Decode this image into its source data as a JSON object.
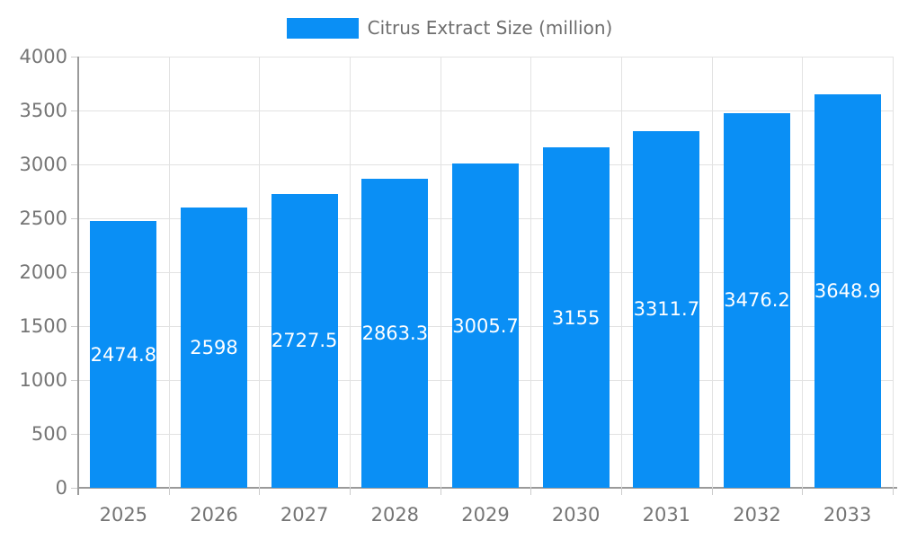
{
  "colors": {
    "bar": "#0A8FF5",
    "grid_line": "#e2e2e2",
    "axis_line": "#9a9a9a",
    "tick": "#cccccc",
    "axis_text": "#757575",
    "legend_text": "#6e6e6e",
    "bar_label_text": "#ffffff",
    "background": "#ffffff"
  },
  "chart_data": {
    "type": "bar",
    "title": "",
    "legend": "Citrus Extract Size (million)",
    "legend_position": "top-center",
    "categories": [
      "2025",
      "2026",
      "2027",
      "2028",
      "2029",
      "2030",
      "2031",
      "2032",
      "2033"
    ],
    "values": [
      2474.8,
      2598,
      2727.5,
      2863.3,
      3005.7,
      3155,
      3311.7,
      3476.2,
      3648.9
    ],
    "value_labels": [
      "2474.8",
      "2598",
      "2727.5",
      "2863.3",
      "3005.7",
      "3155",
      "3311.7",
      "3476.2",
      "3648.9"
    ],
    "xlabel": "",
    "ylabel": "",
    "ylim": [
      0,
      4000
    ],
    "yticks": [
      0,
      500,
      1000,
      1500,
      2000,
      2500,
      3000,
      3500,
      4000
    ],
    "ytick_labels": [
      "0",
      "500",
      "1000",
      "1500",
      "2000",
      "2500",
      "3000",
      "3500",
      "4000"
    ],
    "grid": true
  }
}
